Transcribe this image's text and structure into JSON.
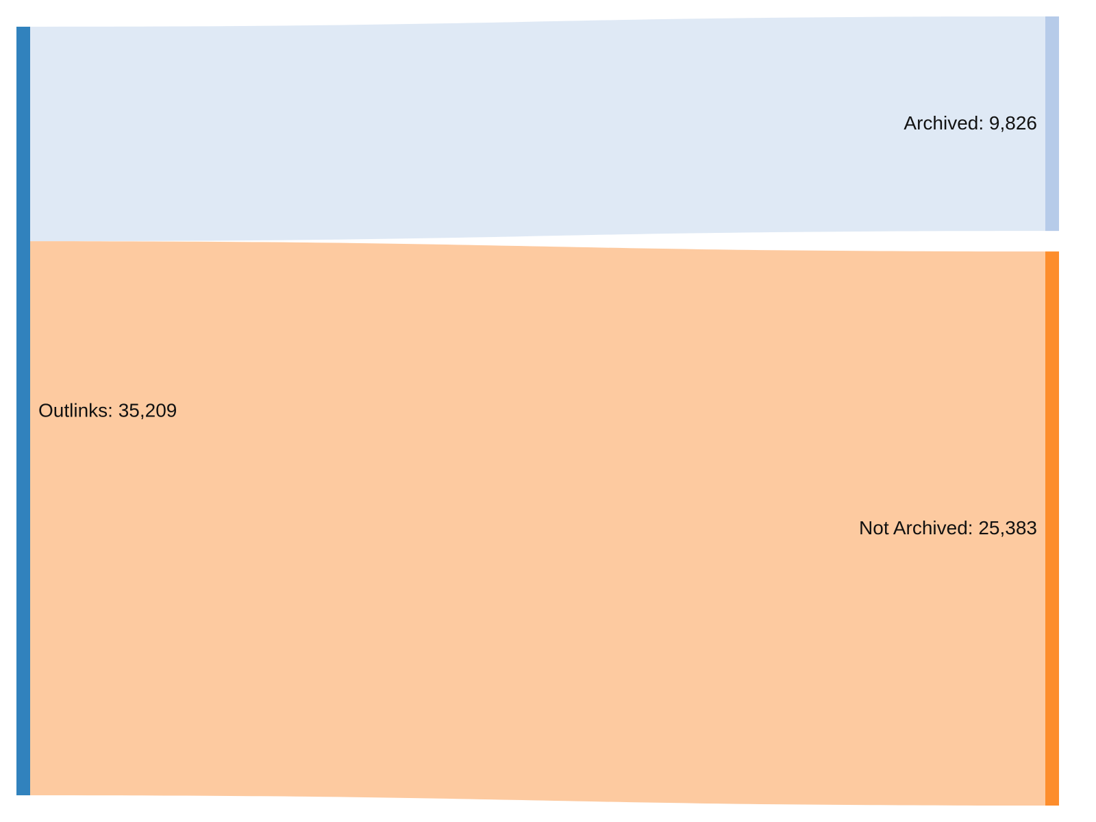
{
  "chart_data": {
    "type": "sankey",
    "title": "",
    "nodes": [
      {
        "id": "outlinks",
        "name": "Outlinks",
        "value": 35209,
        "label": "Outlinks: 35,209",
        "color": "#3182bd",
        "column": 0
      },
      {
        "id": "archived",
        "name": "Archived",
        "value": 9826,
        "label": "Archived: 9,826",
        "color": "#b6cbe9",
        "column": 1
      },
      {
        "id": "not_archived",
        "name": "Not Archived",
        "value": 25383,
        "label": "Not Archived: 25,383",
        "color": "#fd8d2c",
        "column": 1
      }
    ],
    "links": [
      {
        "source": "outlinks",
        "target": "archived",
        "value": 9826,
        "color": "#dfe9f5"
      },
      {
        "source": "outlinks",
        "target": "not_archived",
        "value": 25383,
        "color": "#fdcaa0"
      }
    ]
  }
}
